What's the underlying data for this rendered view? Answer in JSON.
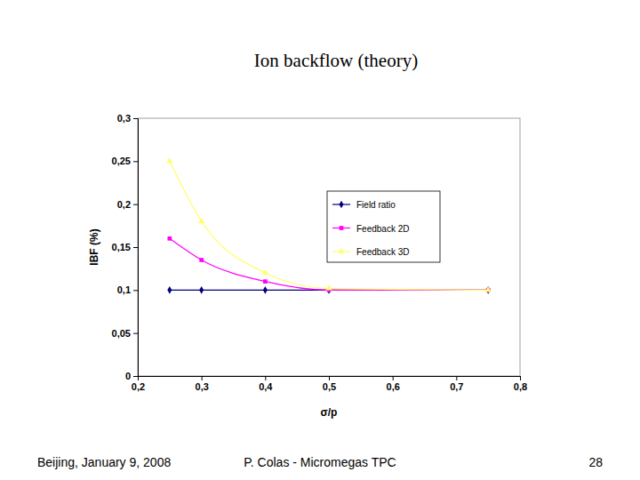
{
  "chart_data": {
    "type": "line",
    "title": "Ion backflow (theory)",
    "x_label": "σ/p",
    "y_label": "IBF (%)",
    "x": [
      0.25,
      0.3,
      0.4,
      0.5,
      0.75
    ],
    "series": [
      {
        "name": "Field ratio",
        "color": "#000080",
        "marker": "diamond",
        "line_style": "smooth",
        "values": [
          0.1,
          0.1,
          0.1,
          0.1,
          0.1
        ]
      },
      {
        "name": "Feedback 2D",
        "color": "#ff00ff",
        "marker": "square",
        "line_style": "smooth",
        "values": [
          0.16,
          0.135,
          0.11,
          0.1,
          0.1
        ]
      },
      {
        "name": "Feedback 3D",
        "color": "#ffff66",
        "marker": "triangle",
        "line_style": "smooth",
        "values": [
          0.25,
          0.18,
          0.12,
          0.102,
          0.1
        ]
      }
    ],
    "xlim": [
      0.2,
      0.8
    ],
    "xticks": [
      {
        "value": 0.2,
        "label": "0,2"
      },
      {
        "value": 0.3,
        "label": "0,3"
      },
      {
        "value": 0.4,
        "label": "0,4"
      },
      {
        "value": 0.5,
        "label": "0,5"
      },
      {
        "value": 0.6,
        "label": "0,6"
      },
      {
        "value": 0.7,
        "label": "0,7"
      },
      {
        "value": 0.8,
        "label": "0,8"
      }
    ],
    "ylim": [
      0,
      0.3
    ],
    "yticks": [
      0,
      {
        "value": 0.05,
        "label": "0,05"
      },
      {
        "value": 0.1,
        "label": "0,1"
      },
      {
        "value": 0.15,
        "label": "0,15"
      },
      {
        "value": 0.2,
        "label": "0,2"
      },
      {
        "value": 0.25,
        "label": "0,25"
      },
      {
        "value": 0.3,
        "label": "0,3"
      }
    ],
    "grid": false,
    "legend": "right"
  },
  "footer": {
    "left": "Beijing, January 9, 2008",
    "center": "P. Colas - Micromegas TPC",
    "right": "28"
  }
}
